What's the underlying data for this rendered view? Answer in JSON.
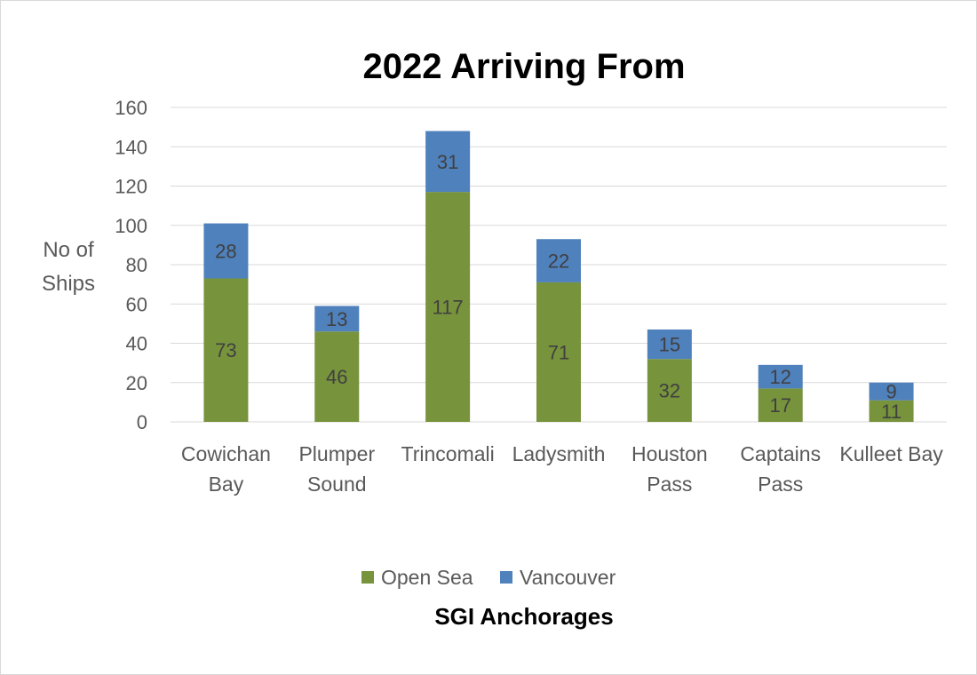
{
  "chart_data": {
    "type": "bar",
    "stacked": true,
    "title": "2022 Arriving From",
    "xlabel": "SGI Anchorages",
    "ylabel_lines": [
      "No of",
      "Ships"
    ],
    "categories": [
      [
        "Cowichan",
        "Bay"
      ],
      [
        "Plumper",
        "Sound"
      ],
      [
        "Trincomali"
      ],
      [
        "Ladysmith"
      ],
      [
        "Houston",
        "Pass"
      ],
      [
        "Captains",
        "Pass"
      ],
      [
        "Kulleet Bay"
      ]
    ],
    "series": [
      {
        "name": "Open Sea",
        "color": "#77933c",
        "values": [
          73,
          46,
          117,
          71,
          32,
          17,
          11
        ]
      },
      {
        "name": "Vancouver",
        "color": "#4f81bd",
        "values": [
          28,
          13,
          31,
          22,
          15,
          12,
          9
        ]
      }
    ],
    "ylim": [
      0,
      160
    ],
    "yticks": [
      0,
      20,
      40,
      60,
      80,
      100,
      120,
      140,
      160
    ],
    "grid": true,
    "legend_position": "bottom"
  }
}
